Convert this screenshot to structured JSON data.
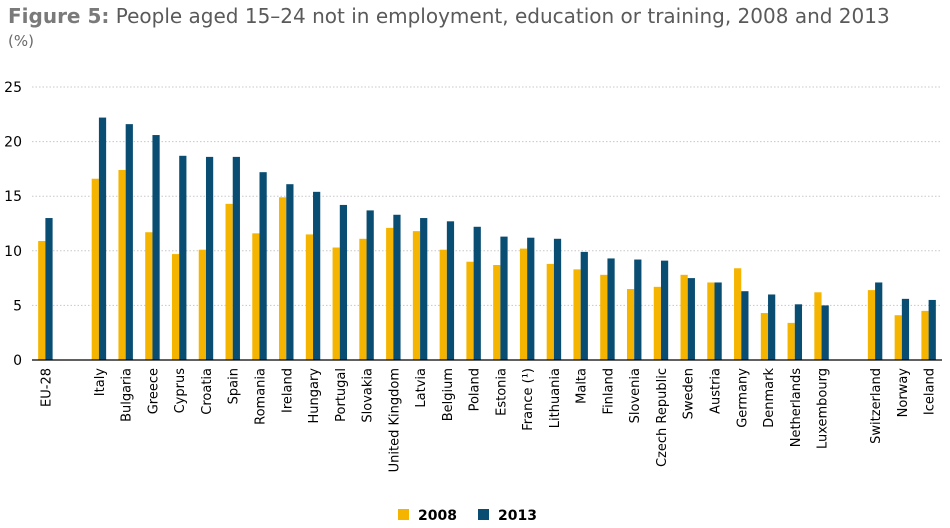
{
  "title_prefix": "Figure 5:",
  "title_text": "People aged 15–24 not in employment, education or training, 2008 and 2013",
  "unit": "(%)",
  "colors": {
    "s2008": "#F5B400",
    "s2013": "#0A4D73",
    "grid": "#c8c8c8"
  },
  "chart_data": {
    "type": "bar",
    "title": "People aged 15–24 not in employment, education or training, 2008 and 2013",
    "ylabel": "(%)",
    "ylim": [
      0,
      25
    ],
    "yticks": [
      0,
      5,
      10,
      15,
      20,
      25
    ],
    "grid": true,
    "legend_position": "bottom-center",
    "categories": [
      "EU-28",
      "Italy",
      "Bulgaria",
      "Greece",
      "Cyprus",
      "Croatia",
      "Spain",
      "Romania",
      "Ireland",
      "Hungary",
      "Portugal",
      "Slovakia",
      "United Kingdom",
      "Latvia",
      "Belgium",
      "Poland",
      "Estonia",
      "France (¹)",
      "Lithuania",
      "Malta",
      "Finland",
      "Slovenia",
      "Czech Republic",
      "Sweden",
      "Austria",
      "Germany",
      "Denmark",
      "Netherlands",
      "Luxembourg",
      "Switzerland",
      "Norway",
      "Iceland"
    ],
    "groups": [
      0,
      1,
      1,
      1,
      1,
      1,
      1,
      1,
      1,
      1,
      1,
      1,
      1,
      1,
      1,
      1,
      1,
      1,
      1,
      1,
      1,
      1,
      1,
      1,
      1,
      1,
      1,
      1,
      1,
      2,
      2,
      2
    ],
    "series": [
      {
        "name": "2008",
        "values": [
          10.9,
          16.6,
          17.4,
          11.7,
          9.7,
          10.1,
          14.3,
          11.6,
          14.9,
          11.5,
          10.3,
          11.1,
          12.1,
          11.8,
          10.1,
          9.0,
          8.7,
          10.2,
          8.8,
          8.3,
          7.8,
          6.5,
          6.7,
          7.8,
          7.1,
          8.4,
          4.3,
          3.4,
          6.2,
          6.4,
          4.1,
          4.5
        ]
      },
      {
        "name": "2013",
        "values": [
          13.0,
          22.2,
          21.6,
          20.6,
          18.7,
          18.6,
          18.6,
          17.2,
          16.1,
          15.4,
          14.2,
          13.7,
          13.3,
          13.0,
          12.7,
          12.2,
          11.3,
          11.2,
          11.1,
          9.9,
          9.3,
          9.2,
          9.1,
          7.5,
          7.1,
          6.3,
          6.0,
          5.1,
          5.0,
          7.1,
          5.6,
          5.5
        ]
      }
    ]
  }
}
